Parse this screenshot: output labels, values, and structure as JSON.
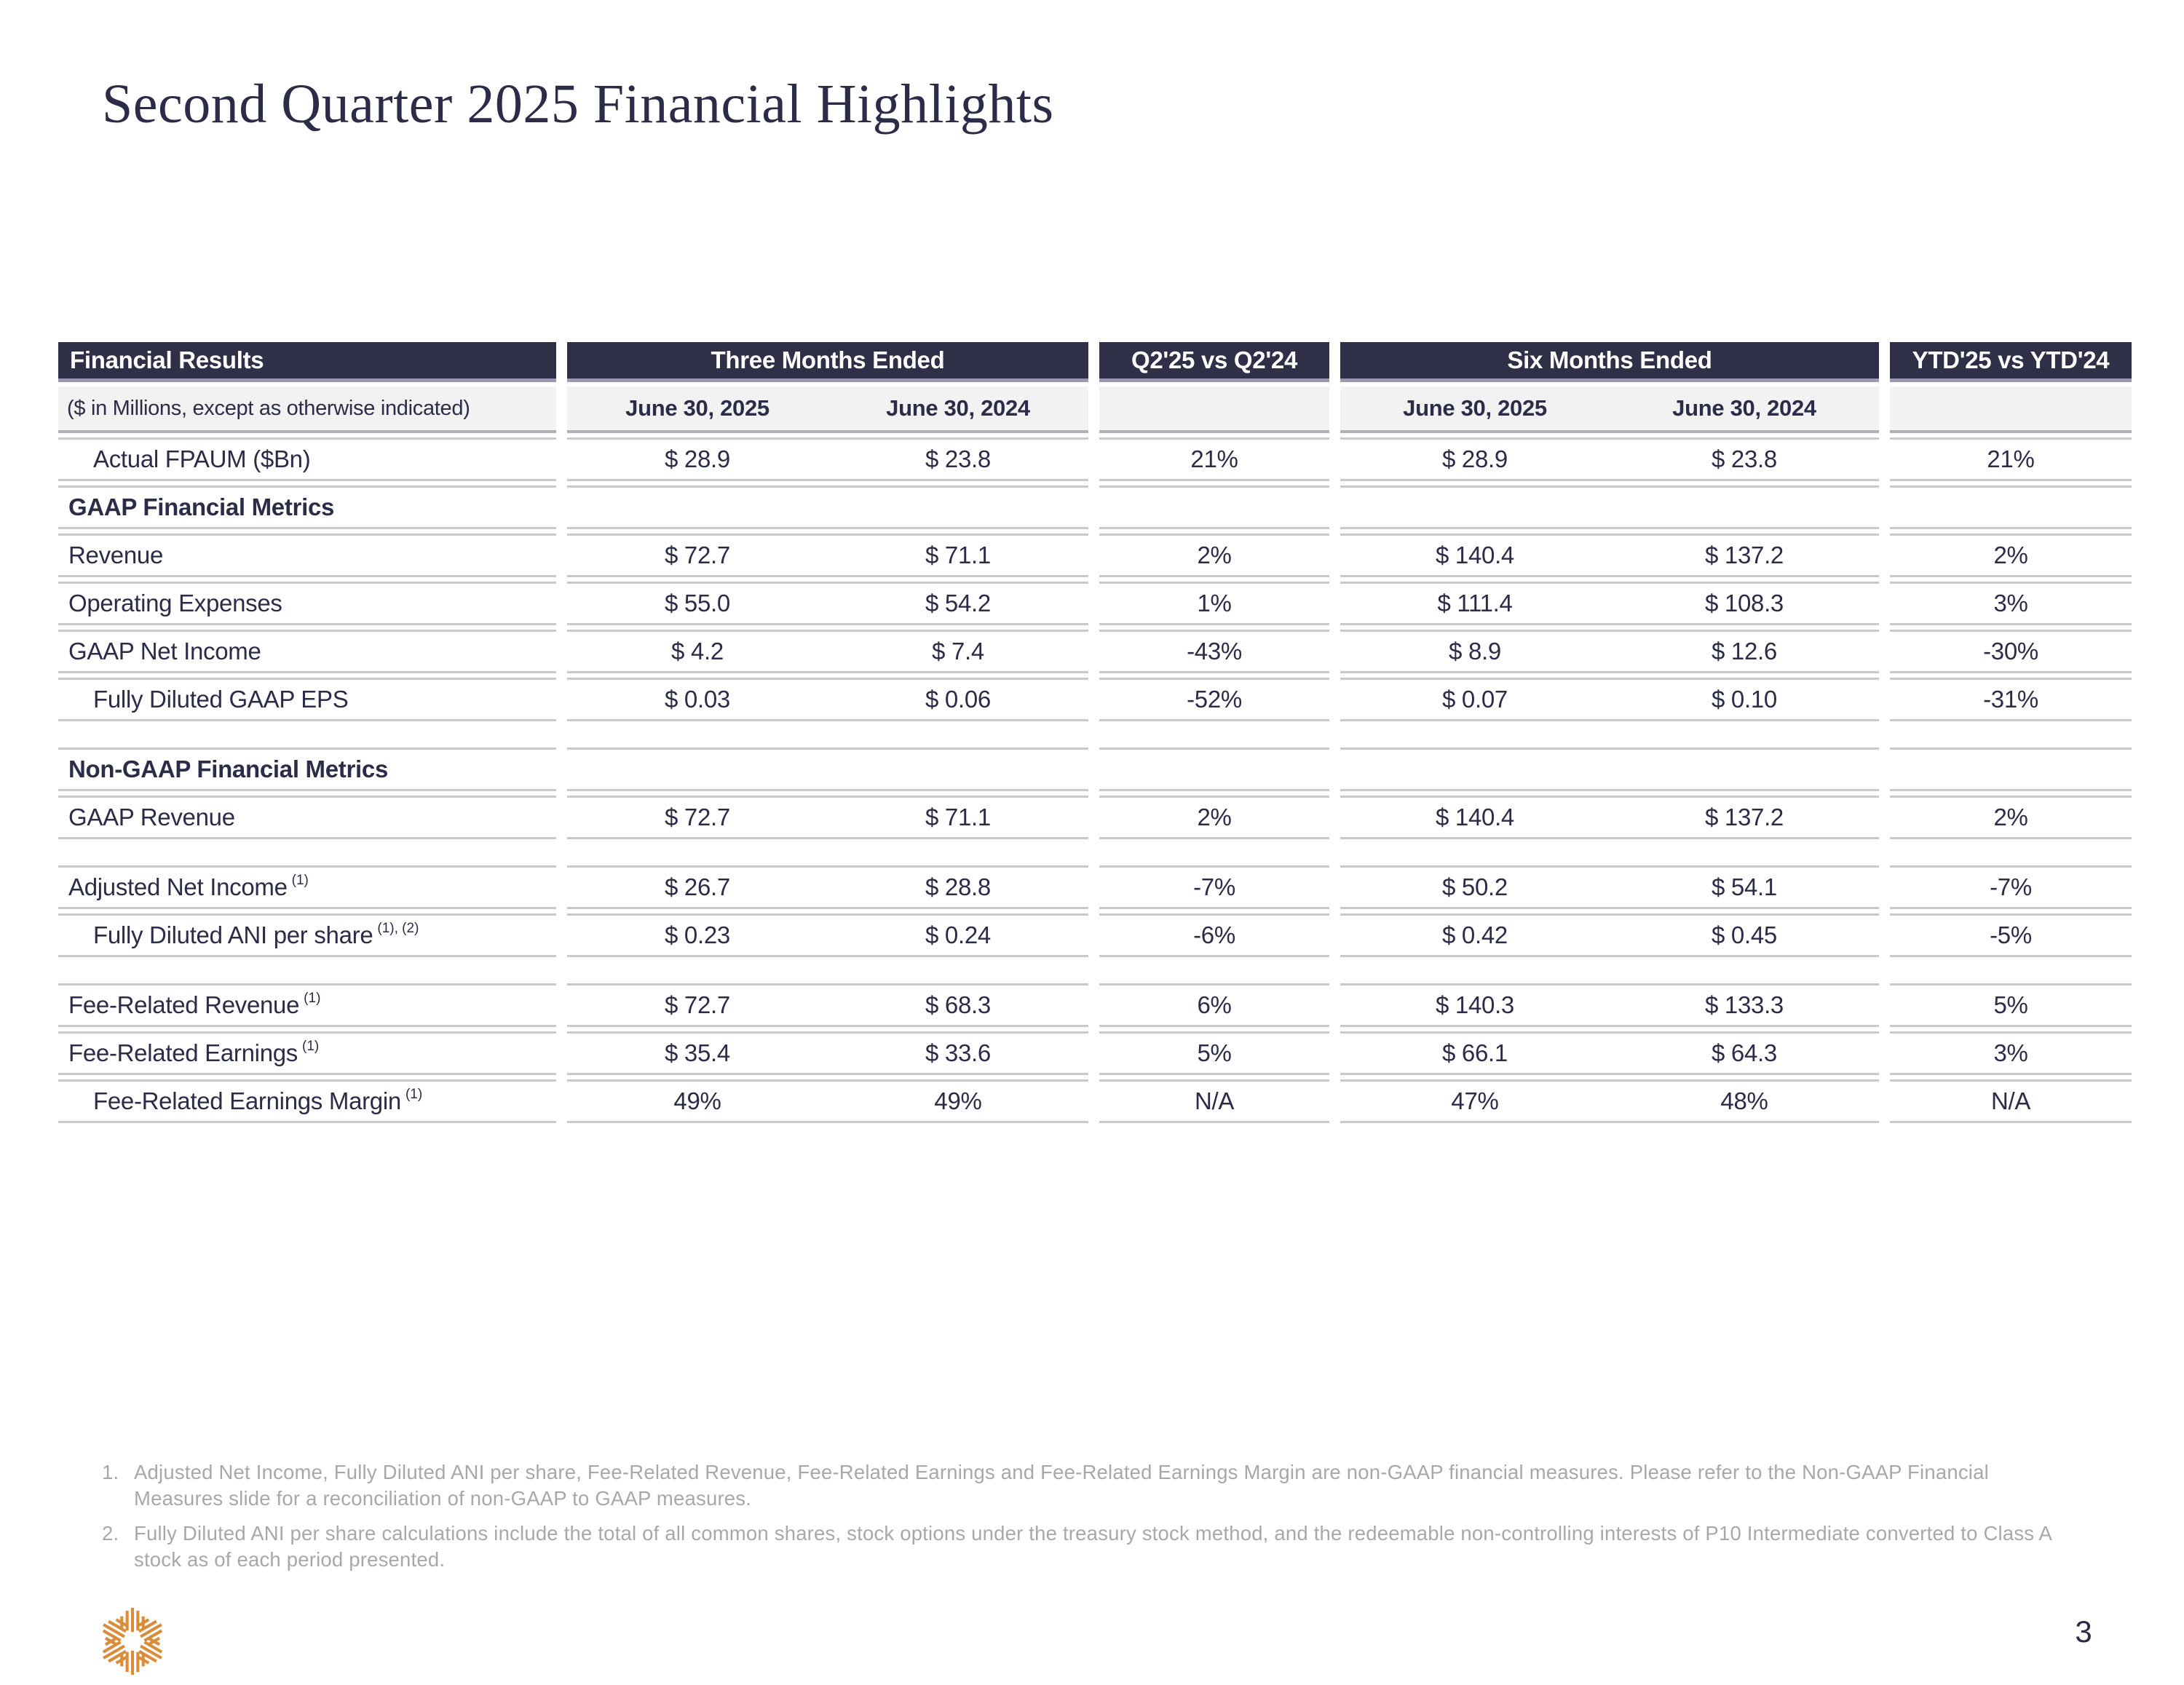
{
  "page": {
    "title": "Second Quarter 2025 Financial Highlights",
    "page_number": "3"
  },
  "table": {
    "header": {
      "financial_results": "Financial Results",
      "three_months": "Three Months Ended",
      "q2_vs": "Q2'25 vs Q2'24",
      "six_months": "Six Months Ended",
      "ytd_vs": "YTD'25 vs YTD'24"
    },
    "subheader": {
      "label": "($ in Millions, except as otherwise indicated)",
      "g1_col1": "June 30, 2025",
      "g1_col2": "June 30, 2024",
      "g2_col1": "June 30, 2025",
      "g2_col2": "June 30, 2024"
    },
    "rows": [
      {
        "type": "data",
        "indent": 1,
        "label": "Actual FPAUM ($Bn)",
        "sup": "",
        "v": [
          "$ 28.9",
          "$ 23.8",
          "21%",
          "$ 28.9",
          "$ 23.8",
          "21%"
        ]
      },
      {
        "type": "section",
        "indent": 0,
        "label": "GAAP Financial Metrics",
        "sup": "",
        "v": [
          "",
          "",
          "",
          "",
          "",
          ""
        ]
      },
      {
        "type": "data",
        "indent": 0,
        "label": "Revenue",
        "sup": "",
        "v": [
          "$ 72.7",
          "$ 71.1",
          "2%",
          "$ 140.4",
          "$ 137.2",
          "2%"
        ]
      },
      {
        "type": "data",
        "indent": 0,
        "label": "Operating Expenses",
        "sup": "",
        "v": [
          "$ 55.0",
          "$ 54.2",
          "1%",
          "$ 111.4",
          "$ 108.3",
          "3%"
        ]
      },
      {
        "type": "data",
        "indent": 0,
        "label": "GAAP Net Income",
        "sup": "",
        "v": [
          "$ 4.2",
          "$ 7.4",
          "-43%",
          "$ 8.9",
          "$ 12.6",
          "-30%"
        ]
      },
      {
        "type": "data",
        "indent": 1,
        "label": "Fully Diluted GAAP EPS",
        "sup": "",
        "v": [
          "$ 0.03",
          "$ 0.06",
          "-52%",
          "$ 0.07",
          "$ 0.10",
          "-31%"
        ]
      },
      {
        "type": "spacer"
      },
      {
        "type": "section",
        "indent": 0,
        "label": "Non-GAAP Financial Metrics",
        "sup": "",
        "v": [
          "",
          "",
          "",
          "",
          "",
          ""
        ]
      },
      {
        "type": "data",
        "indent": 0,
        "label": "GAAP Revenue",
        "sup": "",
        "v": [
          "$ 72.7",
          "$ 71.1",
          "2%",
          "$ 140.4",
          "$ 137.2",
          "2%"
        ]
      },
      {
        "type": "spacer"
      },
      {
        "type": "data",
        "indent": 0,
        "label": "Adjusted Net Income",
        "sup": "(1)",
        "v": [
          "$ 26.7",
          "$ 28.8",
          "-7%",
          "$ 50.2",
          "$ 54.1",
          "-7%"
        ]
      },
      {
        "type": "data",
        "indent": 1,
        "label": "Fully Diluted ANI per share",
        "sup": "(1), (2)",
        "v": [
          "$ 0.23",
          "$ 0.24",
          "-6%",
          "$ 0.42",
          "$ 0.45",
          "-5%"
        ]
      },
      {
        "type": "spacer"
      },
      {
        "type": "data",
        "indent": 0,
        "label": "Fee-Related Revenue",
        "sup": "(1)",
        "v": [
          "$ 72.7",
          "$ 68.3",
          "6%",
          "$ 140.3",
          "$ 133.3",
          "5%"
        ]
      },
      {
        "type": "data",
        "indent": 0,
        "label": "Fee-Related Earnings",
        "sup": "(1)",
        "v": [
          "$ 35.4",
          "$ 33.6",
          "5%",
          "$ 66.1",
          "$ 64.3",
          "3%"
        ]
      },
      {
        "type": "data",
        "indent": 1,
        "label": "Fee-Related Earnings Margin",
        "sup": "(1)",
        "v": [
          "49%",
          "49%",
          "N/A",
          "47%",
          "48%",
          "N/A"
        ]
      }
    ]
  },
  "footnotes": [
    {
      "num": "1.",
      "text": "Adjusted Net Income, Fully Diluted ANI per share, Fee-Related Revenue, Fee-Related Earnings and Fee-Related Earnings Margin are non-GAAP financial measures. Please refer to the Non-GAAP Financial Measures slide for a reconciliation of non-GAAP to GAAP measures."
    },
    {
      "num": "2.",
      "text": "Fully Diluted ANI per share calculations include the total of all common shares, stock options under the treasury stock method, and the redeemable non-controlling interests of P10 Intermediate converted to Class A stock as of each period presented."
    }
  ],
  "colors": {
    "header_navy": "#2F3048",
    "text_navy": "#2B2C47",
    "header_underline_lavender": "#9A9AB5",
    "subheader_bg": "#F2F2F2",
    "row_divider_gray": "#C9C9C9",
    "footnote_gray": "#A8A8A8",
    "logo_orange": "#D98C3A"
  },
  "icons": {
    "logo": "p10-starburst-logo"
  }
}
